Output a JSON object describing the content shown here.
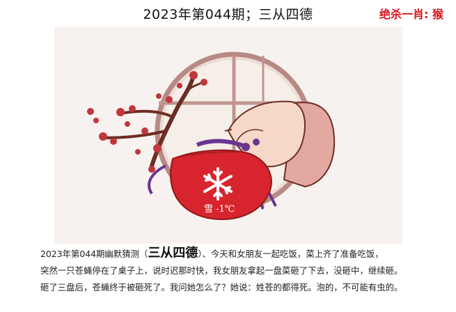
{
  "header": {
    "title": "2023年第044期；三从四德",
    "tag": "绝杀一肖: 猴"
  },
  "illustration": {
    "snow_label": "雪 -1℃",
    "icons": [
      "plum-blossom-branch-icon",
      "window-icon",
      "hand-icon",
      "red-pouch-icon",
      "snowflake-icon"
    ],
    "colors": {
      "pouch": "#d8242e",
      "ribbon": "#6a3592",
      "blossom": "#c2363c",
      "sleeve": "#e3a8a0"
    }
  },
  "caption": {
    "line1_prefix": "2023年第044期幽默猜测（",
    "answer": "三从四德",
    "line1_suffix": "）、今天和女朋友一起吃饭，菜上齐了准备吃饭，",
    "line2": "突然一只苍蝇停在了桌子上，说时迟那时快，我女朋友拿起一盘菜砸了下去，没砸中，继续砸。",
    "line3": "砸了三盘后，苍蝇终于被砸死了。我问她怎么了？她说：姓苍的都得死。泡的，不可能有虫的。"
  }
}
